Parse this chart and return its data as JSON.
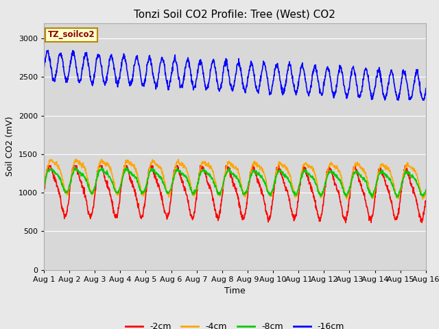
{
  "title": "Tonzi Soil CO2 Profile: Tree (West) CO2",
  "xlabel": "Time",
  "ylabel": "Soil CO2 (mV)",
  "ylim": [
    0,
    3200
  ],
  "yticks": [
    0,
    500,
    1000,
    1500,
    2000,
    2500,
    3000
  ],
  "x_labels": [
    "Aug 1",
    "Aug 2",
    "Aug 3",
    "Aug 4",
    "Aug 5",
    "Aug 6",
    "Aug 7",
    "Aug 8",
    "Aug 9",
    "Aug 10",
    "Aug 11",
    "Aug 12",
    "Aug 13",
    "Aug 14",
    "Aug 15",
    "Aug 16"
  ],
  "n_days": 15,
  "colors": {
    "-2cm": "#ff0000",
    "-4cm": "#ffa500",
    "-8cm": "#00cc00",
    "-16cm": "#0000ff"
  },
  "legend_label": "TZ_soilco2",
  "fig_bg": "#e8e8e8",
  "ax_bg": "#d8d8d8",
  "title_fontsize": 11,
  "axis_label_fontsize": 9,
  "tick_fontsize": 8
}
